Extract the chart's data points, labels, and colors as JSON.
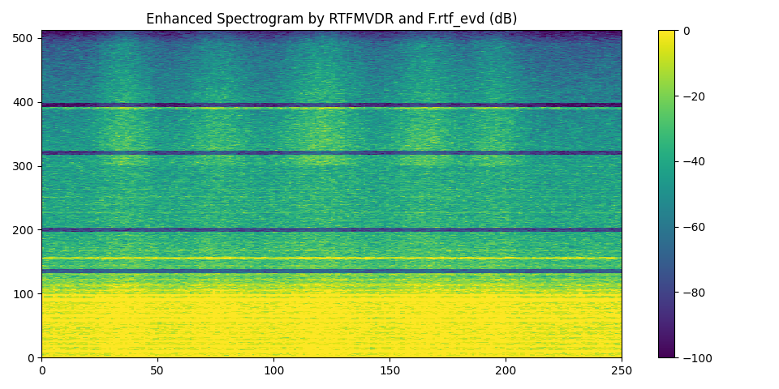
{
  "title": "Enhanced Spectrogram by RTFMVDR and F.rtf_evd (dB)",
  "xlim": [
    0,
    250
  ],
  "ylim": [
    0,
    512
  ],
  "vmin": -100,
  "vmax": 0,
  "colormap": "viridis",
  "xticks": [
    0,
    50,
    100,
    150,
    200,
    250
  ],
  "yticks": [
    0,
    100,
    200,
    300,
    400,
    500
  ],
  "figsize": [
    9.6,
    4.8
  ],
  "dpi": 100,
  "nx": 251,
  "ny": 512,
  "seed": 42
}
